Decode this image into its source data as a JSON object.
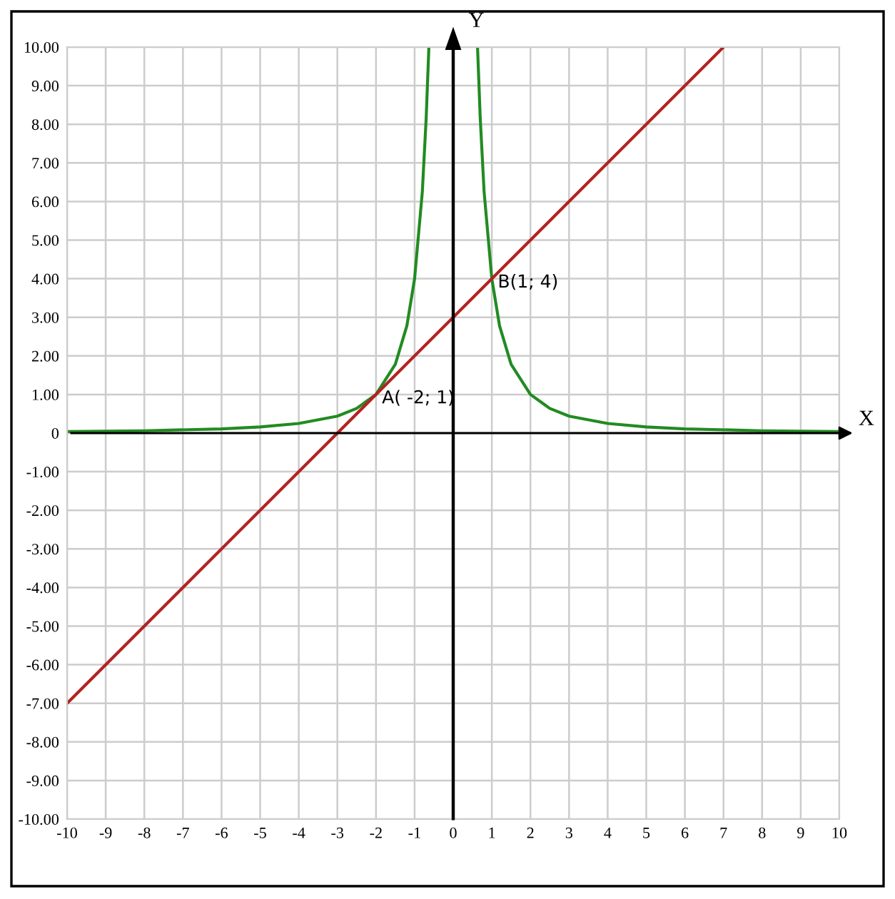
{
  "chart_data": {
    "type": "line",
    "xlabel": "X",
    "ylabel": "Y",
    "series": [
      {
        "color": "#228b22",
        "x": [
          -10,
          -8,
          -6,
          -5,
          -4,
          -3,
          -2.5,
          -2,
          -1.5,
          -1.2,
          -1,
          -0.8,
          -0.7,
          -0.63,
          0,
          0.63,
          0.7,
          0.8,
          1,
          1.2,
          1.5,
          2,
          2.5,
          3,
          4,
          5,
          6,
          8,
          10
        ],
        "values": [
          0.04,
          0.06,
          0.11,
          0.16,
          0.25,
          0.44,
          0.64,
          1,
          1.78,
          2.78,
          4,
          6.25,
          8.16,
          10,
          null,
          10,
          8.16,
          6.25,
          4,
          2.78,
          1.78,
          1,
          0.64,
          0.44,
          0.25,
          0.16,
          0.11,
          0.06,
          0.04
        ]
      },
      {
        "color": "#b22222",
        "x": [
          -10,
          7
        ],
        "values": [
          -7,
          10
        ]
      }
    ],
    "xlim": [
      -10,
      10
    ],
    "ylim": [
      -10,
      10
    ],
    "xticks": [
      -10,
      -9,
      -8,
      -7,
      -6,
      -5,
      -4,
      -3,
      -2,
      -1,
      0,
      1,
      2,
      3,
      4,
      5,
      6,
      7,
      8,
      9,
      10
    ],
    "yticks": [
      {
        "value": -10,
        "label": "-10.00"
      },
      {
        "value": -9,
        "label": "-9.00"
      },
      {
        "value": -8,
        "label": "-8.00"
      },
      {
        "value": -7,
        "label": "-7.00"
      },
      {
        "value": -6,
        "label": "-6.00"
      },
      {
        "value": -5,
        "label": "-5.00"
      },
      {
        "value": -4,
        "label": "-4.00"
      },
      {
        "value": -3,
        "label": "-3.00"
      },
      {
        "value": -2,
        "label": "-2.00"
      },
      {
        "value": -1,
        "label": "-1.00"
      },
      0,
      {
        "value": 1,
        "label": "1.00"
      },
      {
        "value": 2,
        "label": "2.00"
      },
      {
        "value": 3,
        "label": "3.00"
      },
      {
        "value": 4,
        "label": "4.00"
      },
      {
        "value": 5,
        "label": "5.00"
      },
      {
        "value": 6,
        "label": "6.00"
      },
      {
        "value": 7,
        "label": "7.00"
      },
      {
        "value": 8,
        "label": "8.00"
      },
      {
        "value": 9,
        "label": "9.00"
      },
      {
        "value": 10,
        "label": "10.00"
      }
    ],
    "grid": true,
    "annotations": [
      {
        "text": "A( -2; 1)",
        "x": -2,
        "y": 1
      },
      {
        "text": "B(1; 4)",
        "x": 1,
        "y": 4
      }
    ]
  }
}
